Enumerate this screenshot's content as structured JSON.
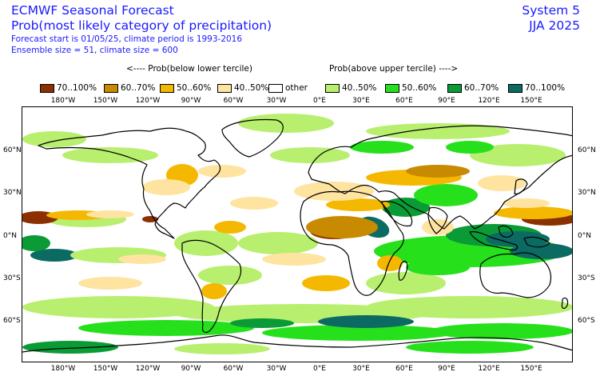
{
  "title": {
    "line1": "ECMWF Seasonal Forecast",
    "line2": "Prob(most likely category of precipitation)",
    "sub1": "Forecast start is 01/05/25, climate period is 1993-2016",
    "sub2": "Ensemble size = 51, climate size = 600"
  },
  "system": {
    "name": "System 5",
    "season": "JJA 2025"
  },
  "arrows": {
    "below": "<---- Prob(below lower tercile)",
    "above": "Prob(above upper tercile) ---->"
  },
  "legend": [
    {
      "label": "70..100%",
      "color": "#8b3000"
    },
    {
      "label": "60..70%",
      "color": "#c88a00"
    },
    {
      "label": "50..60%",
      "color": "#f5b800"
    },
    {
      "label": "40..50%",
      "color": "#ffe3a0"
    },
    {
      "label": "other",
      "color": "#ffffff"
    },
    {
      "label": "40..50%",
      "color": "#b8ef6e"
    },
    {
      "label": "50..60%",
      "color": "#26e01c"
    },
    {
      "label": "60..70%",
      "color": "#0a9a36"
    },
    {
      "label": "70..100%",
      "color": "#0b6b62"
    }
  ],
  "lon_labels": [
    "180°W",
    "150°W",
    "120°W",
    "90°W",
    "60°W",
    "30°W",
    "0°E",
    "30°E",
    "60°E",
    "90°E",
    "120°E",
    "150°E"
  ],
  "lat_labels": [
    "60°N",
    "30°N",
    "0°N",
    "30°S",
    "60°S"
  ]
}
